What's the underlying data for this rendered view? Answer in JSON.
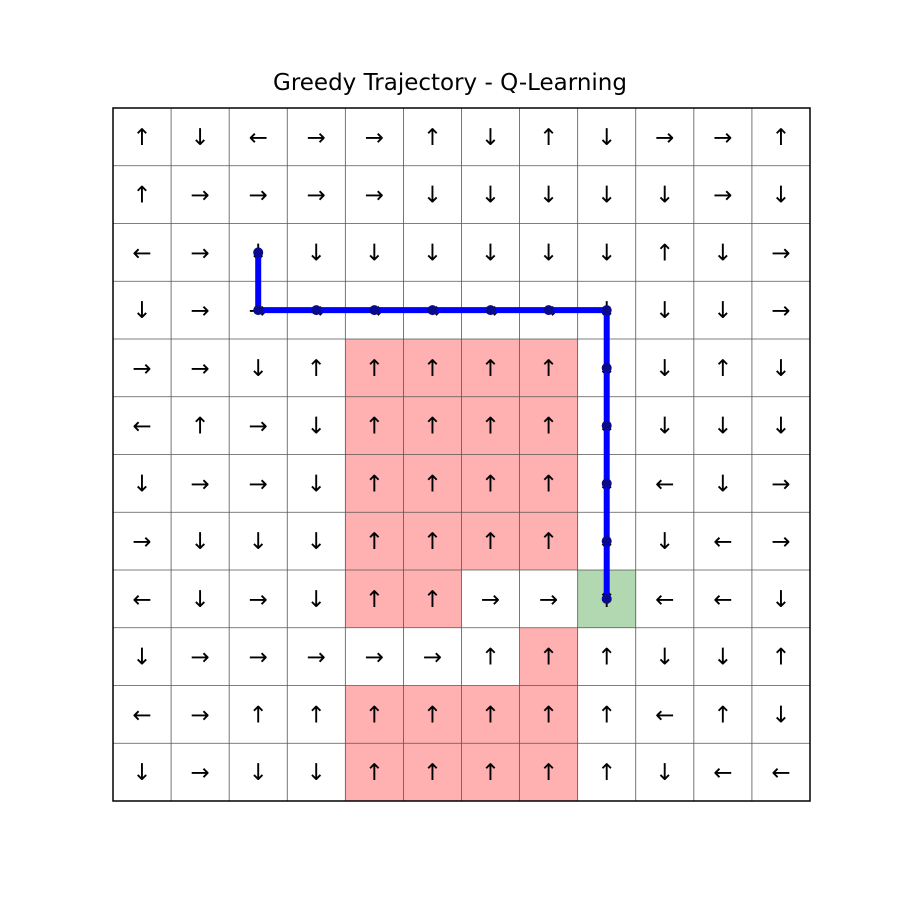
{
  "chart_data": {
    "type": "heatmap",
    "title": "Greedy Trajectory - Q-Learning",
    "rows": 12,
    "cols": 12,
    "grid": true,
    "policy_arrows": [
      [
        "↑",
        "↓",
        "←",
        "→",
        "→",
        "↑",
        "↓",
        "↑",
        "↓",
        "→",
        "→",
        "↑"
      ],
      [
        "↑",
        "→",
        "→",
        "→",
        "→",
        "↓",
        "↓",
        "↓",
        "↓",
        "↓",
        "→",
        "↓"
      ],
      [
        "←",
        "→",
        "↓",
        "↓",
        "↓",
        "↓",
        "↓",
        "↓",
        "↓",
        "↑",
        "↓",
        "→"
      ],
      [
        "↓",
        "→",
        "→",
        "→",
        "→",
        "→",
        "→",
        "→",
        "↓",
        "↓",
        "↓",
        "→"
      ],
      [
        "→",
        "→",
        "↓",
        "↑",
        "↑",
        "↑",
        "↑",
        "↑",
        "↓",
        "↓",
        "↑",
        "↓"
      ],
      [
        "←",
        "↑",
        "→",
        "↓",
        "↑",
        "↑",
        "↑",
        "↑",
        "↓",
        "↓",
        "↓",
        "↓"
      ],
      [
        "↓",
        "→",
        "→",
        "↓",
        "↑",
        "↑",
        "↑",
        "↑",
        "↓",
        "←",
        "↓",
        "→"
      ],
      [
        "→",
        "↓",
        "↓",
        "↓",
        "↑",
        "↑",
        "↑",
        "↑",
        "↓",
        "↓",
        "←",
        "→"
      ],
      [
        "←",
        "↓",
        "→",
        "↓",
        "↑",
        "↑",
        "→",
        "→",
        "↑",
        "←",
        "←",
        "↓"
      ],
      [
        "↓",
        "→",
        "→",
        "→",
        "→",
        "→",
        "↑",
        "↑",
        "↑",
        "↓",
        "↓",
        "↑"
      ],
      [
        "←",
        "→",
        "↑",
        "↑",
        "↑",
        "↑",
        "↑",
        "↑",
        "↑",
        "←",
        "↑",
        "↓"
      ],
      [
        "↓",
        "→",
        "↓",
        "↓",
        "↑",
        "↑",
        "↑",
        "↑",
        "↑",
        "↓",
        "←",
        "←"
      ]
    ],
    "cliff_cells": [
      [
        4,
        4
      ],
      [
        4,
        5
      ],
      [
        4,
        6
      ],
      [
        4,
        7
      ],
      [
        5,
        4
      ],
      [
        5,
        5
      ],
      [
        5,
        6
      ],
      [
        5,
        7
      ],
      [
        6,
        4
      ],
      [
        6,
        5
      ],
      [
        6,
        6
      ],
      [
        6,
        7
      ],
      [
        7,
        4
      ],
      [
        7,
        5
      ],
      [
        7,
        6
      ],
      [
        7,
        7
      ],
      [
        8,
        4
      ],
      [
        8,
        5
      ],
      [
        9,
        7
      ],
      [
        10,
        4
      ],
      [
        10,
        5
      ],
      [
        10,
        6
      ],
      [
        10,
        7
      ],
      [
        11,
        4
      ],
      [
        11,
        5
      ],
      [
        11,
        6
      ],
      [
        11,
        7
      ]
    ],
    "goal_cell": [
      8,
      8
    ],
    "trajectory": [
      [
        2,
        2
      ],
      [
        3,
        2
      ],
      [
        3,
        3
      ],
      [
        3,
        4
      ],
      [
        3,
        5
      ],
      [
        3,
        6
      ],
      [
        3,
        7
      ],
      [
        3,
        8
      ],
      [
        4,
        8
      ],
      [
        5,
        8
      ],
      [
        6,
        8
      ],
      [
        7,
        8
      ],
      [
        8,
        8
      ]
    ],
    "colors": {
      "cliff": "#ffb0b0",
      "goal": "#b1d8b1",
      "path": "#0000ff",
      "path_marker": "#0a0a8c",
      "grid_line": "#555555",
      "border": "#000000",
      "arrow": "#000000"
    }
  }
}
